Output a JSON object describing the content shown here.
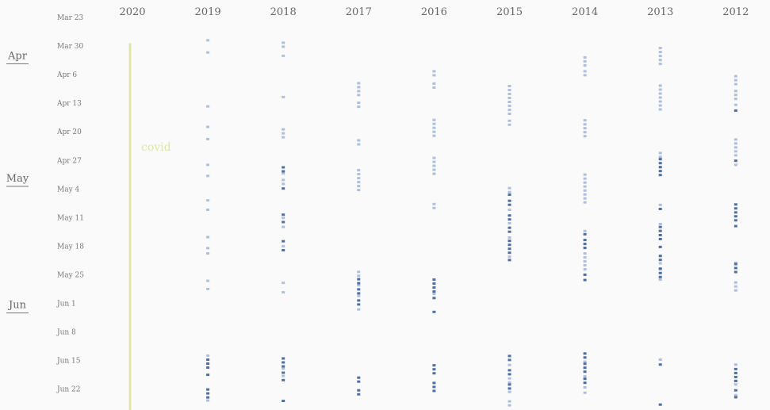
{
  "chart_data": {
    "type": "scatter",
    "title": "",
    "xlabel": "",
    "ylabel": "",
    "columns": [
      "2020",
      "2019",
      "2018",
      "2017",
      "2016",
      "2015",
      "2014",
      "2013",
      "2012"
    ],
    "date_ticks": [
      "Mar 23",
      "Mar 30",
      "Apr 6",
      "Apr 13",
      "Apr 20",
      "Apr 27",
      "May 4",
      "May 11",
      "May 18",
      "May 25",
      "Jun 1",
      "Jun 8",
      "Jun 15",
      "Jun 22"
    ],
    "months": [
      {
        "label": "Apr",
        "day": 10
      },
      {
        "label": "May",
        "day": 40
      },
      {
        "label": "Jun",
        "day": 71
      }
    ],
    "y_start": "Mar 23",
    "y_unit": "days since Mar 23",
    "colors": {
      "light": "#aebfdd",
      "dark": "#4e6f9f",
      "covid": "#dde6a6"
    },
    "annotation": {
      "column": "2020",
      "label": "covid",
      "from_day": 6.3,
      "to_day": 100
    },
    "series": [
      {
        "name": "2019",
        "light": [
          [
            5.3,
            6.3
          ],
          [
            8.3,
            9.3
          ],
          [
            21.5,
            22.5
          ],
          [
            26.5,
            27.5
          ],
          [
            29.5,
            30.5
          ],
          [
            35.8,
            36.8
          ],
          [
            38.5,
            39.5
          ],
          [
            44.5,
            45.5
          ],
          [
            46.8,
            47.8
          ],
          [
            53.5,
            54.5
          ],
          [
            56.2,
            57.2
          ],
          [
            57.5,
            58.5
          ],
          [
            64.2,
            65.2
          ],
          [
            66.2,
            67.2
          ],
          [
            82.5,
            83.5
          ],
          [
            93.5,
            94.5
          ]
        ],
        "dark": [
          [
            83.5,
            86.2
          ],
          [
            87.2,
            88.2
          ],
          [
            90.8,
            93.5
          ]
        ]
      },
      {
        "name": "2018",
        "light": [
          [
            5.9,
            8.2
          ],
          [
            9.1,
            10.1
          ],
          [
            19.2,
            20.2
          ],
          [
            27.1,
            30.3
          ],
          [
            37.9,
            38.8
          ],
          [
            39.5,
            41.6
          ],
          [
            48.8,
            49.8
          ],
          [
            51.0,
            52.0
          ],
          [
            55.7,
            56.7
          ],
          [
            64.7,
            65.9
          ],
          [
            67.0,
            68.0
          ],
          [
            85.7,
            86.7
          ],
          [
            87.5,
            88.5
          ],
          [
            96.9,
            97.9
          ]
        ],
        "dark": [
          [
            36.4,
            37.9
          ],
          [
            41.6,
            42.6
          ],
          [
            48.0,
            48.8
          ],
          [
            49.8,
            51.0
          ],
          [
            54.5,
            55.7
          ],
          [
            56.7,
            57.7
          ],
          [
            83.2,
            85.7
          ],
          [
            86.7,
            87.5
          ],
          [
            88.5,
            89.5
          ],
          [
            93.6,
            94.9
          ],
          [
            95.5,
            96.9
          ],
          [
            97.9,
            98.9
          ]
        ]
      },
      {
        "name": "2017",
        "light": [
          [
            15.8,
            19.7
          ],
          [
            20.6,
            23.0
          ],
          [
            29.8,
            31.3
          ],
          [
            37.1,
            42.6
          ],
          [
            62.0,
            63.8
          ],
          [
            65.3,
            66.3
          ],
          [
            67.9,
            69.0
          ],
          [
            71.2,
            72.2
          ]
        ],
        "dark": [
          [
            63.8,
            65.3
          ],
          [
            66.3,
            67.9
          ],
          [
            69.0,
            71.2
          ],
          [
            87.9,
            89.6
          ],
          [
            91.0,
            92.6
          ]
        ]
      },
      {
        "name": "2016",
        "light": [
          [
            12.9,
            15.1
          ],
          [
            15.9,
            18.2
          ],
          [
            24.8,
            29.6
          ],
          [
            34.1,
            39.0
          ],
          [
            45.4,
            47.5
          ],
          [
            67.4,
            68.4
          ]
        ],
        "dark": [
          [
            63.9,
            68.1
          ],
          [
            68.4,
            69.4
          ],
          [
            71.8,
            73.0
          ],
          [
            84.9,
            87.9
          ],
          [
            89.2,
            91.8
          ],
          [
            97.4,
            98.5
          ],
          [
            99.2,
            100.2
          ]
        ]
      },
      {
        "name": "2015",
        "light": [
          [
            16.5,
            23.8
          ],
          [
            25.0,
            26.8
          ],
          [
            41.5,
            43.1
          ],
          [
            46.8,
            48.2
          ],
          [
            50.1,
            51.2
          ],
          [
            53.6,
            54.4
          ],
          [
            58.3,
            59.1
          ],
          [
            84.8,
            86.1
          ],
          [
            88.1,
            89.6
          ],
          [
            91.4,
            91.9
          ],
          [
            93.7,
            95.6
          ],
          [
            96.4,
            97.0
          ]
        ],
        "dark": [
          [
            43.1,
            44.3
          ],
          [
            44.6,
            46.8
          ],
          [
            48.2,
            50.1
          ],
          [
            51.2,
            53.6
          ],
          [
            54.4,
            58.3
          ],
          [
            59.1,
            60.3
          ],
          [
            82.6,
            84.8
          ],
          [
            86.1,
            88.1
          ],
          [
            89.6,
            91.4
          ],
          [
            95.6,
            96.4
          ],
          [
            97.0,
            98.3
          ]
        ]
      },
      {
        "name": "2014",
        "light": [
          [
            9.5,
            12.1
          ],
          [
            12.9,
            14.6
          ],
          [
            24.9,
            29.7
          ],
          [
            38.2,
            46.2
          ],
          [
            52.0,
            52.8
          ],
          [
            57.5,
            62.7
          ],
          [
            84.0,
            84.5
          ],
          [
            87.6,
            88.2
          ],
          [
            90.3,
            90.9
          ],
          [
            91.6,
            91.8
          ],
          [
            100.7,
            102.4
          ]
        ],
        "dark": [
          [
            52.8,
            53.8
          ],
          [
            54.2,
            57.5
          ],
          [
            62.7,
            63.5
          ],
          [
            64.0,
            65.2
          ],
          [
            82.0,
            84.0
          ],
          [
            84.5,
            87.6
          ],
          [
            88.2,
            90.3
          ]
        ]
      },
      {
        "name": "2013",
        "light": [
          [
            7.2,
            12.1
          ],
          [
            16.4,
            23.1
          ],
          [
            32.9,
            34.4
          ],
          [
            45.6,
            46.6
          ],
          [
            50.3,
            50.9
          ],
          [
            59.9,
            61.2
          ],
          [
            61.4,
            62.3
          ],
          [
            63.9,
            64.9
          ],
          [
            83.5,
            84.7
          ],
          [
            99.5,
            100.9
          ]
        ],
        "dark": [
          [
            34.4,
            39.0
          ],
          [
            46.6,
            47.3
          ],
          [
            51.0,
            52.7
          ],
          [
            53.0,
            54.8
          ],
          [
            55.9,
            57.0
          ],
          [
            58.1,
            59.9
          ],
          [
            61.2,
            61.4
          ],
          [
            62.3,
            63.9
          ],
          [
            84.7,
            86.0
          ],
          [
            94.5,
            96.3
          ],
          [
            97.3,
            98.1
          ],
          [
            98.6,
            99.5
          ]
        ]
      },
      {
        "name": "2012",
        "light": [
          [
            14.1,
            16.8
          ],
          [
            17.7,
            20.3
          ],
          [
            21.1,
            22.5
          ],
          [
            29.6,
            34.8
          ],
          [
            35.8,
            36.0
          ],
          [
            59.8,
            60.1
          ],
          [
            64.6,
            67.4
          ],
          [
            84.7,
            85.8
          ],
          [
            89.6,
            91.0
          ],
          [
            92.2,
            92.7
          ]
        ],
        "dark": [
          [
            22.5,
            23.1
          ],
          [
            34.8,
            35.8
          ],
          [
            45.5,
            50.4
          ],
          [
            50.8,
            51.4
          ],
          [
            60.1,
            63.3
          ],
          [
            85.8,
            89.6
          ],
          [
            91.0,
            92.2
          ],
          [
            92.7,
            93.4
          ]
        ]
      }
    ]
  }
}
